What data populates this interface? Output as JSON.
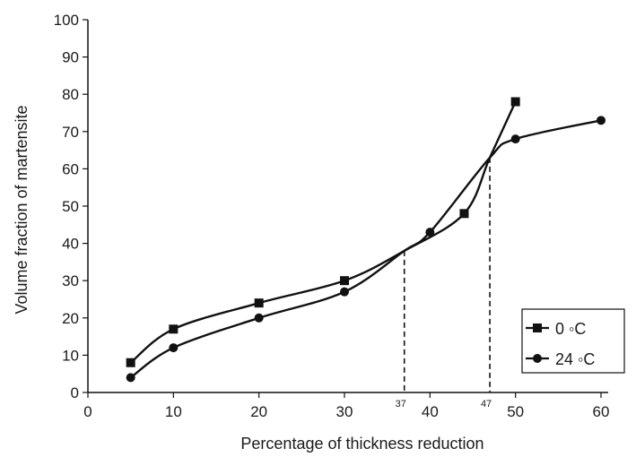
{
  "chart_data": {
    "type": "line",
    "xlabel": "Percentage of thickness reduction",
    "ylabel": "Volume fraction of martensite",
    "xlim": [
      0,
      60
    ],
    "ylim": [
      0,
      100
    ],
    "xticks": [
      "0",
      "10",
      "20",
      "30",
      "40",
      "50",
      "60"
    ],
    "yticks": [
      "0",
      "10",
      "20",
      "30",
      "40",
      "50",
      "60",
      "70",
      "80",
      "90",
      "100"
    ],
    "grid": false,
    "legend_position": "bottom-right",
    "series": [
      {
        "name": "0 ◦C",
        "marker": "square",
        "color": "#111111",
        "points": [
          [
            5,
            8
          ],
          [
            10,
            17
          ],
          [
            20,
            24
          ],
          [
            30,
            30
          ],
          [
            37,
            38
          ],
          [
            44,
            48
          ],
          [
            47,
            63
          ],
          [
            50,
            78
          ]
        ]
      },
      {
        "name": "24 ◦C",
        "marker": "circle",
        "color": "#111111",
        "points": [
          [
            5,
            4
          ],
          [
            10,
            12
          ],
          [
            20,
            20
          ],
          [
            30,
            27
          ],
          [
            37,
            38
          ],
          [
            40,
            43
          ],
          [
            47,
            63
          ],
          [
            50,
            68
          ],
          [
            60,
            73
          ]
        ]
      }
    ],
    "markers_shown": {
      "0 ◦C": [
        [
          5,
          8
        ],
        [
          10,
          17
        ],
        [
          20,
          24
        ],
        [
          30,
          30
        ],
        [
          44,
          48
        ],
        [
          50,
          78
        ]
      ],
      "24 ◦C": [
        [
          5,
          4
        ],
        [
          10,
          12
        ],
        [
          20,
          20
        ],
        [
          30,
          27
        ],
        [
          40,
          43
        ],
        [
          50,
          68
        ],
        [
          60,
          73
        ]
      ]
    },
    "annotations": [
      {
        "label": "37",
        "x": 37,
        "y": 38
      },
      {
        "label": "47",
        "x": 47,
        "y": 63
      }
    ]
  }
}
